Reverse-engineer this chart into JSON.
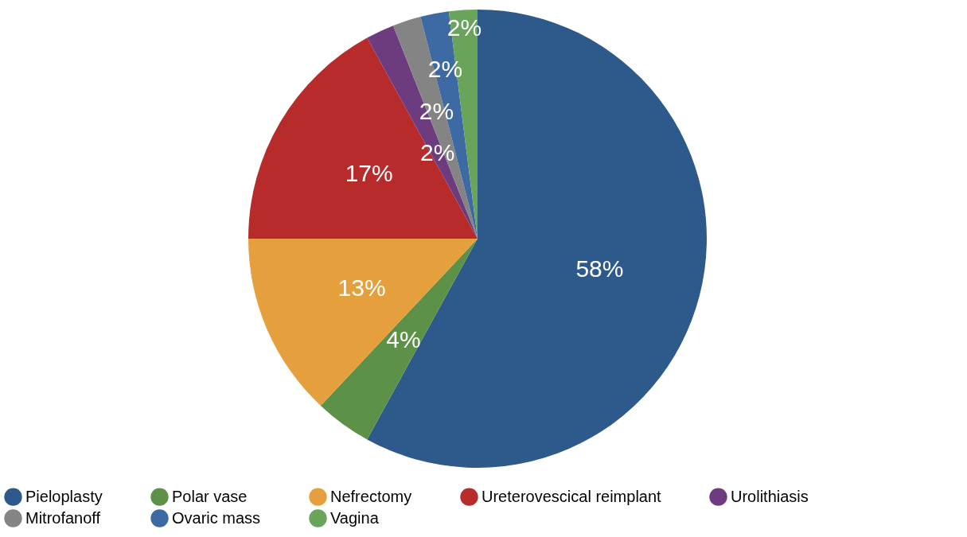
{
  "chart_data": {
    "type": "pie",
    "categories": [
      "Pieloplasty",
      "Polar vase",
      "Nefrectomy",
      "Ureterovescical reimplant",
      "Urolithiasis",
      "Mitrofanoff",
      "Ovaric mass",
      "Vagina"
    ],
    "values": [
      58,
      4,
      13,
      17,
      2,
      2,
      2,
      2
    ],
    "colors": [
      "#2e5a8b",
      "#5d9147",
      "#e69f3d",
      "#b82b2b",
      "#6c3c7f",
      "#848484",
      "#3e6aa3",
      "#6aa35a"
    ],
    "value_labels": [
      "58%",
      "4%",
      "13%",
      "17%",
      "2%",
      "2%",
      "2%",
      "2%"
    ],
    "legend": "bottom"
  }
}
